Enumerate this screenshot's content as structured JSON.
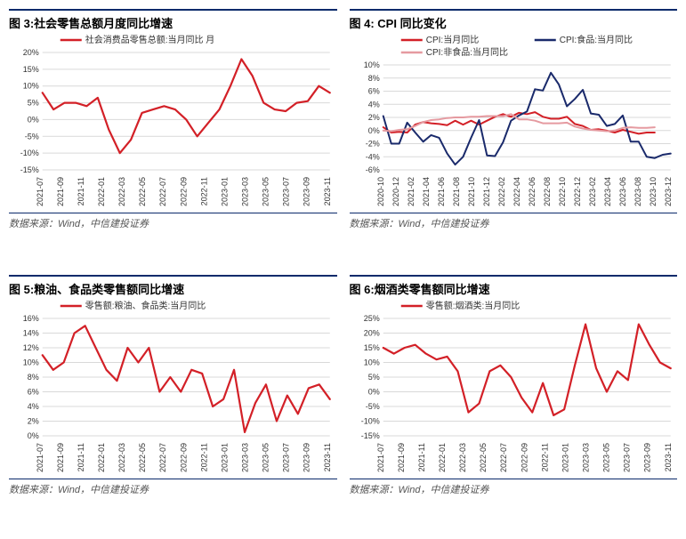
{
  "common": {
    "source_label": "数据来源：Wind，中信建投证券",
    "axis_color": "#555",
    "grid_color": "#d9d9d9",
    "tick_font_size": 9,
    "tick_color": "#333",
    "legend_font_size": 11,
    "legend_text_color": "#333",
    "title_font_size": 13
  },
  "colors": {
    "red": "#d32027",
    "navy": "#1a2a6b",
    "pink": "#e59aa0"
  },
  "chart3": {
    "title": "图 3:社会零售总额月度同比增速",
    "type": "line",
    "legend": [
      "社会消费品零售总额:当月同比 月"
    ],
    "legend_colors": [
      "#d32027"
    ],
    "y_min": -15,
    "y_max": 20,
    "y_step": 5,
    "y_suffix": "%",
    "x_labels": [
      "2021-07",
      "2021-09",
      "2021-11",
      "2022-01",
      "2022-03",
      "2022-05",
      "2022-07",
      "2022-09",
      "2022-11",
      "2023-01",
      "2023-03",
      "2023-05",
      "2023-07",
      "2023-09",
      "2023-11"
    ],
    "series": [
      {
        "color": "#d32027",
        "width": 2.2,
        "data": [
          8,
          3,
          5,
          5,
          4,
          6.5,
          -3,
          -10,
          -6,
          2,
          3,
          4,
          3,
          0,
          -5,
          -1,
          3,
          10,
          18,
          13,
          5,
          3,
          2.5,
          5,
          5.5,
          10,
          8
        ]
      }
    ]
  },
  "chart4": {
    "title": "图 4: CPI 同比变化",
    "type": "line",
    "legend": [
      "CPI:当月同比",
      "CPI:食品:当月同比",
      "CPI:非食品:当月同比"
    ],
    "legend_colors": [
      "#d32027",
      "#1a2a6b",
      "#e59aa0"
    ],
    "y_min": -6,
    "y_max": 10,
    "y_step": 2,
    "y_suffix": "%",
    "x_labels": [
      "2020-10",
      "2020-12",
      "2021-02",
      "2021-04",
      "2021-06",
      "2021-08",
      "2021-10",
      "2021-12",
      "2022-02",
      "2022-04",
      "2022-06",
      "2022-08",
      "2022-10",
      "2022-12",
      "2023-02",
      "2023-04",
      "2023-06",
      "2023-08",
      "2023-10",
      "2023-12"
    ],
    "series": [
      {
        "color": "#d32027",
        "width": 2,
        "data": [
          0.5,
          -0.3,
          -0.2,
          -0.3,
          0.9,
          1.3,
          1.1,
          1.0,
          0.8,
          1.5,
          0.9,
          1.5,
          0.9,
          1.5,
          2.1,
          2.5,
          2.1,
          2.7,
          2.5,
          2.8,
          2.1,
          1.8,
          1.8,
          2.1,
          1.0,
          0.7,
          0.1,
          0.2,
          0,
          -0.3,
          0.1,
          -0.2,
          -0.5,
          -0.3,
          -0.3
        ]
      },
      {
        "color": "#1a2a6b",
        "width": 2,
        "data": [
          2.2,
          -2,
          -2,
          1.2,
          -0.3,
          -1.7,
          -0.7,
          -1.1,
          -3.5,
          -5.2,
          -4.0,
          -1.1,
          1.6,
          -3.8,
          -3.9,
          -1.8,
          1.5,
          2.3,
          2.9,
          6.3,
          6.1,
          8.8,
          7.0,
          3.7,
          4.8,
          6.2,
          2.6,
          2.4,
          0.7,
          1.0,
          2.3,
          -1.7,
          -1.7,
          -4.0,
          -4.2,
          -3.7,
          -3.5
        ]
      },
      {
        "color": "#e59aa0",
        "width": 2,
        "data": [
          0,
          -0.1,
          0.1,
          0.2,
          0.7,
          1.3,
          1.6,
          1.7,
          1.9,
          2.0,
          2.0,
          2.1,
          2.1,
          2.2,
          2.2,
          2.2,
          2.5,
          1.7,
          1.7,
          1.5,
          1.1,
          1.1,
          1.1,
          1.2,
          0.6,
          0.3,
          0.1,
          0,
          -0.1,
          0.0,
          0.4,
          0.5,
          0.4,
          0.4,
          0.5
        ]
      }
    ]
  },
  "chart5": {
    "title": "图 5:粮油、食品类零售额同比增速",
    "type": "line",
    "legend": [
      "零售额:粮油、食品类:当月同比"
    ],
    "legend_colors": [
      "#d32027"
    ],
    "y_min": 0,
    "y_max": 16,
    "y_step": 2,
    "y_suffix": "%",
    "x_labels": [
      "2021-07",
      "2021-09",
      "2021-11",
      "2022-01",
      "2022-03",
      "2022-05",
      "2022-07",
      "2022-09",
      "2022-11",
      "2023-01",
      "2023-03",
      "2023-05",
      "2023-07",
      "2023-09",
      "2023-11"
    ],
    "series": [
      {
        "color": "#d32027",
        "width": 2.2,
        "data": [
          11,
          9,
          10,
          14,
          15,
          12,
          9,
          7.5,
          12,
          10,
          12,
          6,
          8,
          6,
          9,
          8.5,
          4,
          5,
          9,
          0.5,
          4.5,
          7,
          2,
          5.5,
          3,
          6.5,
          7,
          5
        ]
      }
    ]
  },
  "chart6": {
    "title": "图 6:烟酒类零售额同比增速",
    "type": "line",
    "legend": [
      "零售额:烟酒类:当月同比"
    ],
    "legend_colors": [
      "#d32027"
    ],
    "y_min": -15,
    "y_max": 25,
    "y_step": 5,
    "y_suffix": "%",
    "x_labels": [
      "2021-07",
      "2021-09",
      "2021-11",
      "2022-01",
      "2022-03",
      "2022-05",
      "2022-07",
      "2022-09",
      "2022-11",
      "2023-01",
      "2023-03",
      "2023-05",
      "2023-07",
      "2023-09",
      "2023-11"
    ],
    "series": [
      {
        "color": "#d32027",
        "width": 2.2,
        "data": [
          15,
          13,
          15,
          16,
          13,
          11,
          12,
          7,
          -7,
          -4,
          7,
          9,
          5,
          -2,
          -7,
          3,
          -8,
          -6,
          9,
          23,
          8,
          0,
          7,
          4,
          23,
          16,
          10,
          8
        ]
      }
    ]
  }
}
